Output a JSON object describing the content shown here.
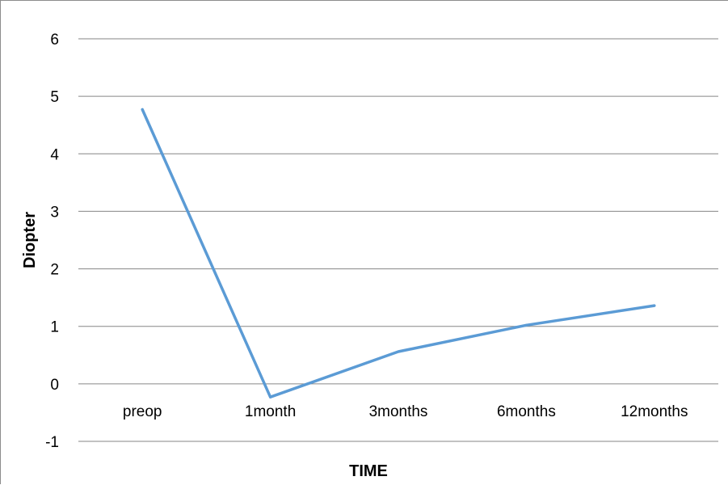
{
  "chart_data": {
    "type": "line",
    "title": "",
    "xlabel": "TIME",
    "ylabel": "Diopter",
    "categories": [
      "preop",
      "1month",
      "3months",
      "6months",
      "12months"
    ],
    "series": [
      {
        "values": [
          4.77,
          -0.23,
          0.56,
          1.02,
          1.36
        ],
        "color": "#5b9bd5"
      }
    ],
    "ylim": [
      -1,
      6
    ],
    "yticks": [
      "-1",
      "0",
      "1",
      "2",
      "3",
      "4",
      "5",
      "6"
    ],
    "grid": true,
    "grid_color": "#868686",
    "legend": "none"
  }
}
